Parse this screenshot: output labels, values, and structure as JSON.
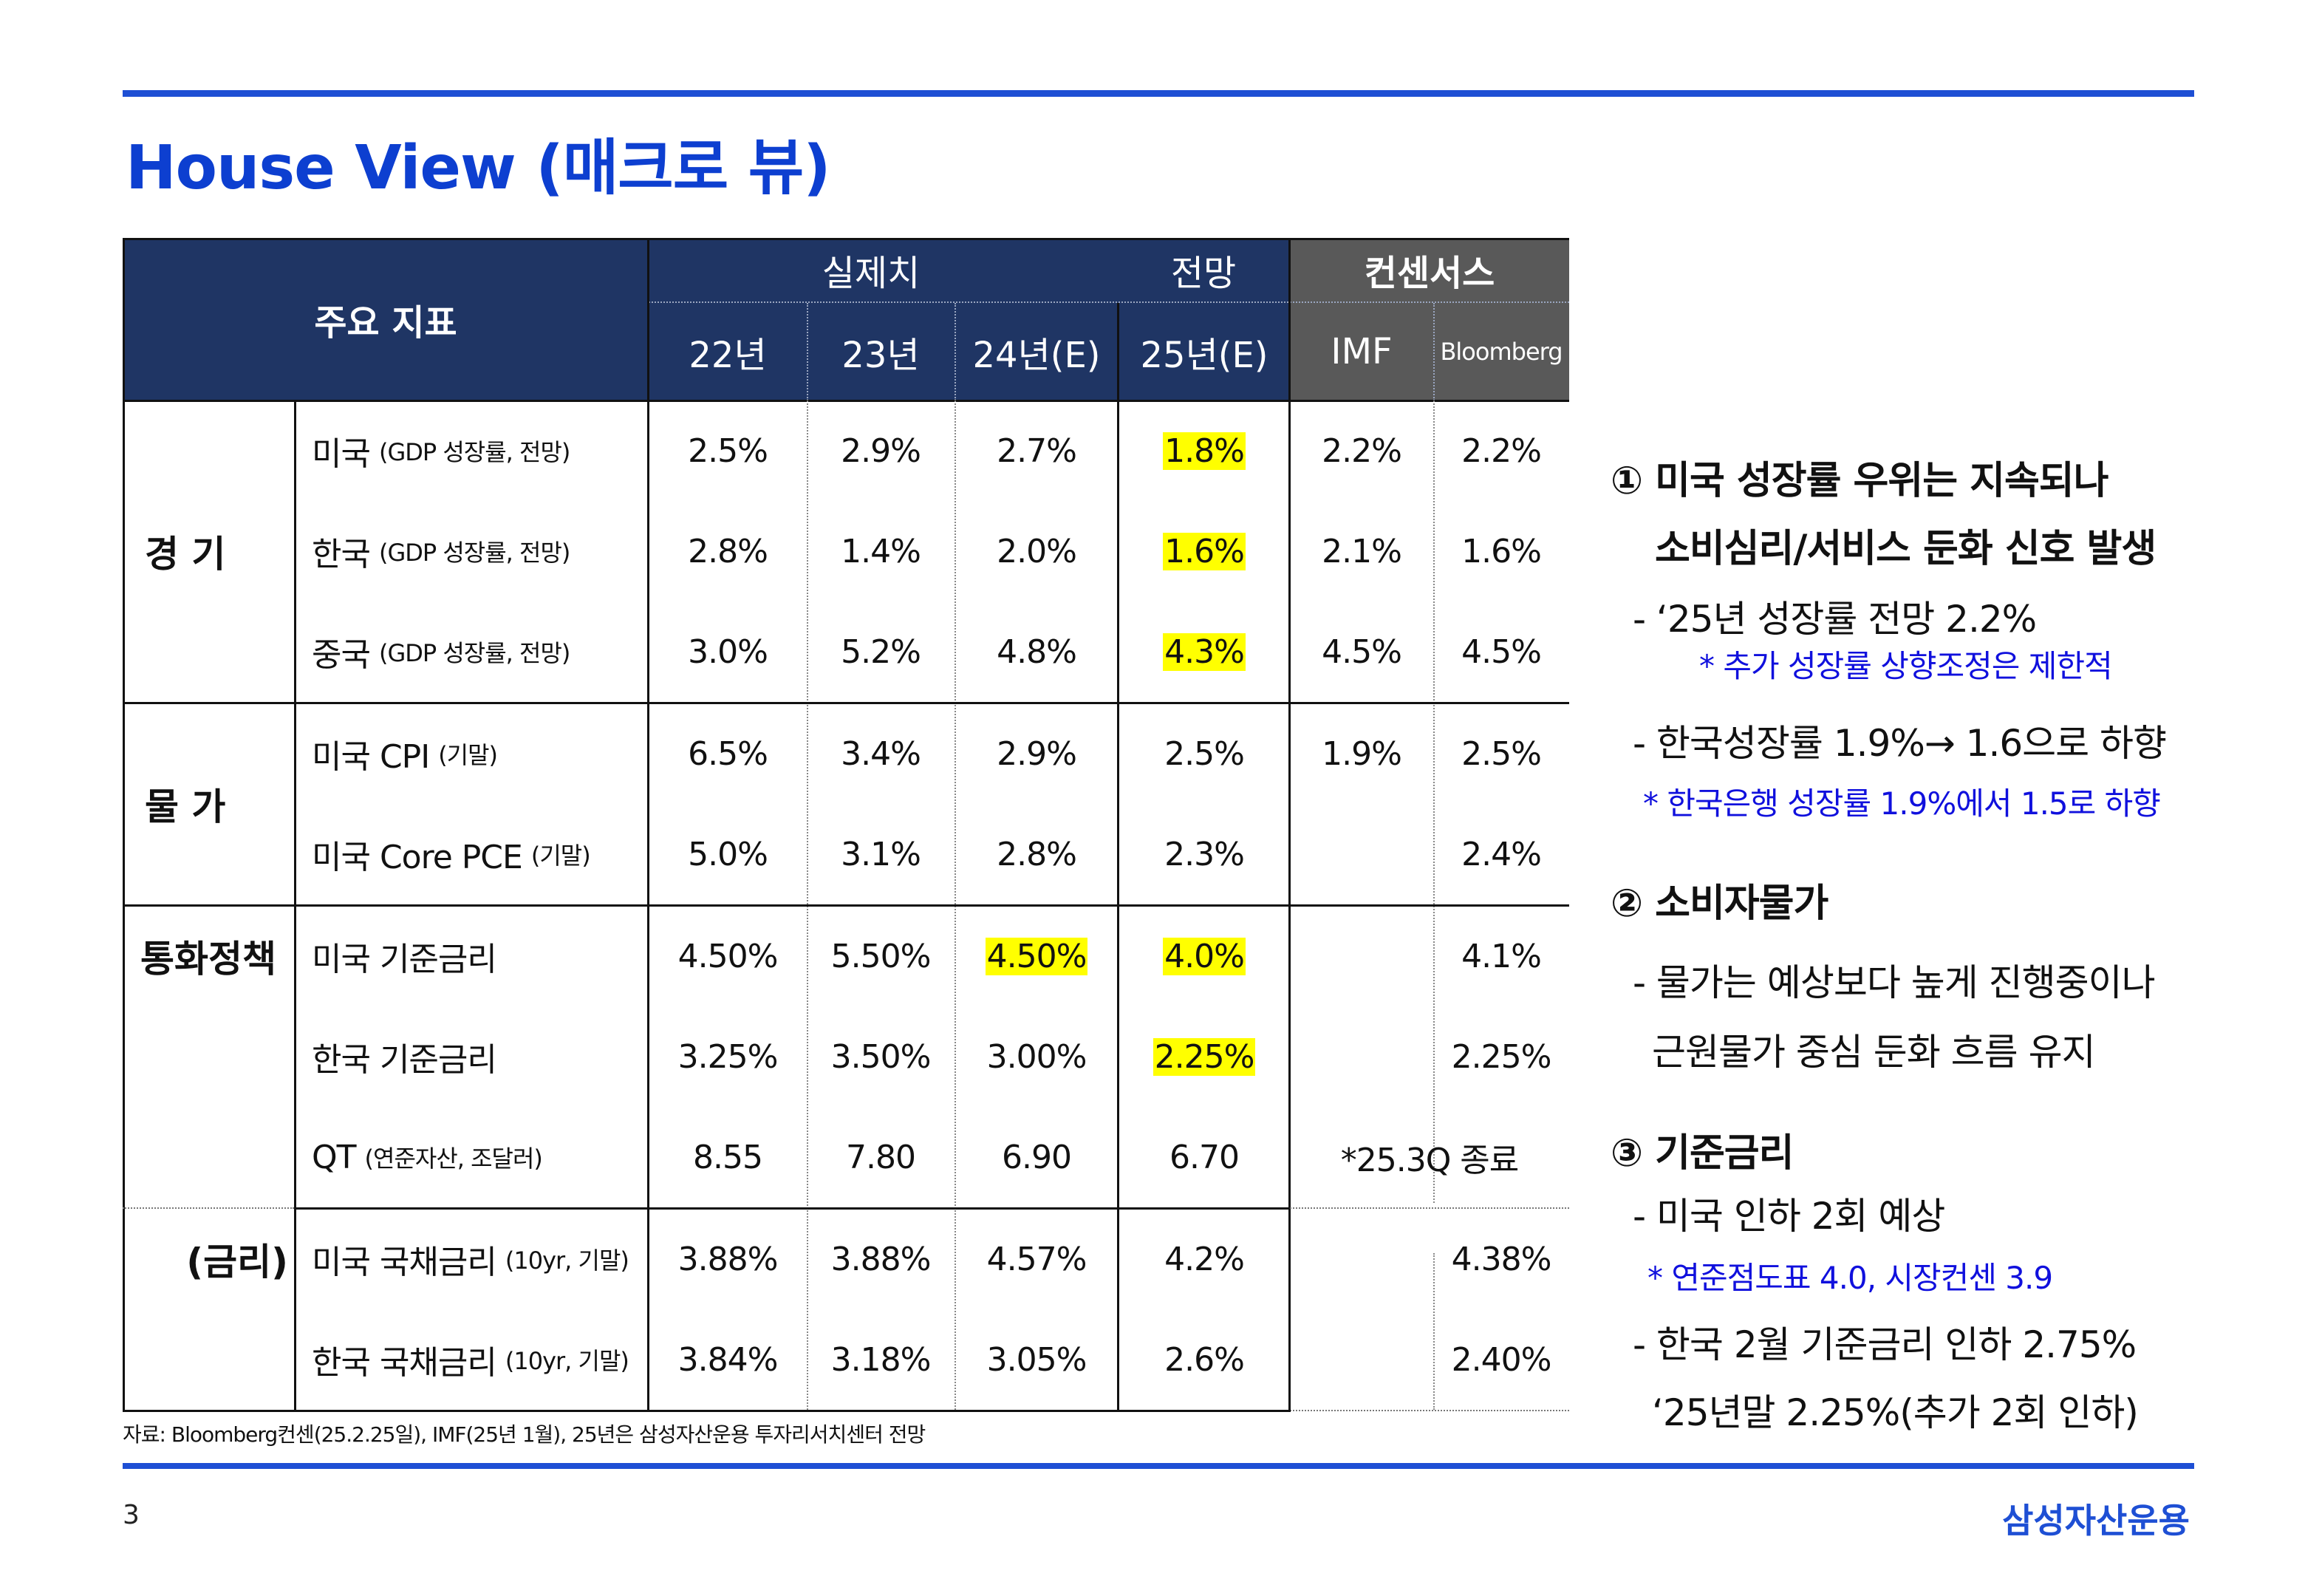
{
  "title": "House View (매크로 뷰)",
  "page_number": "3",
  "brand": "삼성자산운용",
  "source_note": "자료: Bloomberg컨센(25.2.25일), IMF(25년 1월), 25년은 삼성자산운용 투자리서치센터 전망",
  "table": {
    "header": {
      "indicator": "주요 지표",
      "actual": "실제치",
      "forecast": "전망",
      "consensus": "컨센서스",
      "years": [
        "22년",
        "23년",
        "24년(E)",
        "25년(E)"
      ],
      "imf": "IMF",
      "bloomberg": "Bloomberg"
    },
    "categories": {
      "economy": "경 기",
      "price": "물 가",
      "policy": "통화정책",
      "rates": "(금리)"
    },
    "rows": [
      {
        "name": "미국",
        "sub": "(GDP 성장률, 전망)",
        "values": [
          "2.5%",
          "2.9%",
          "2.7%",
          "1.8%",
          "2.2%",
          "2.2%"
        ]
      },
      {
        "name": "한국",
        "sub": "(GDP 성장률, 전망)",
        "values": [
          "2.8%",
          "1.4%",
          "2.0%",
          "1.6%",
          "2.1%",
          "1.6%"
        ]
      },
      {
        "name": "중국",
        "sub": "(GDP 성장률, 전망)",
        "values": [
          "3.0%",
          "5.2%",
          "4.8%",
          "4.3%",
          "4.5%",
          "4.5%"
        ]
      },
      {
        "name": "미국 CPI",
        "sub": "(기말)",
        "values": [
          "6.5%",
          "3.4%",
          "2.9%",
          "2.5%",
          "1.9%",
          "2.5%"
        ]
      },
      {
        "name": "미국 Core PCE",
        "sub": "(기말)",
        "values": [
          "5.0%",
          "3.1%",
          "2.8%",
          "2.3%",
          "",
          "2.4%"
        ]
      },
      {
        "name": "미국 기준금리",
        "sub": "",
        "values": [
          "4.50%",
          "5.50%",
          "4.50%",
          "4.0%",
          "",
          "4.1%"
        ]
      },
      {
        "name": "한국 기준금리",
        "sub": "",
        "values": [
          "3.25%",
          "3.50%",
          "3.00%",
          "2.25%",
          "",
          "2.25%"
        ]
      },
      {
        "name": "QT",
        "sub": "(연준자산, 조달러)",
        "values": [
          "8.55",
          "7.80",
          "6.90",
          "6.70"
        ],
        "consensus_note": "*25.3Q 종료"
      },
      {
        "name": "미국 국채금리",
        "sub": "(10yr, 기말)",
        "values": [
          "3.88%",
          "3.88%",
          "4.57%",
          "4.2%",
          "",
          "4.38%"
        ]
      },
      {
        "name": "한국 국채금리",
        "sub": "(10yr, 기말)",
        "values": [
          "3.84%",
          "3.18%",
          "3.05%",
          "2.6%",
          "",
          "2.40%"
        ]
      }
    ]
  },
  "notes": {
    "n1_head_1": "① 미국 성장률 우위는 지속되나",
    "n1_head_2": "소비심리/서비스 둔화 신호 발생",
    "n1_b1": "- ‘25년 성장률 전망 2.2%",
    "n1_b1_blue": "* 추가 성장률 상향조정은 제한적",
    "n1_b2": "- 한국성장률 1.9%→ 1.6으로 하향",
    "n1_b2_blue": "* 한국은행 성장률 1.9%에서 1.5로 하향",
    "n2_head": "② 소비자물가",
    "n2_b1": "- 물가는 예상보다 높게 진행중이나",
    "n2_b1_cont": "근원물가 중심 둔화 흐름 유지",
    "n3_head": "③ 기준금리",
    "n3_b1": "- 미국 인하 2회 예상",
    "n3_b1_blue": "* 연준점도표 4.0, 시장컨센 3.9",
    "n3_b2": "- 한국 2월 기준금리 인하 2.75%",
    "n3_b2_cont": "‘25년말 2.25%(추가 2회 인하)"
  },
  "colors": {
    "brand_blue": "#1e4fd4",
    "header_navy": "#1f3564",
    "header_gray": "#595959",
    "highlight": "#ffff00",
    "note_blue": "#1010dd"
  }
}
